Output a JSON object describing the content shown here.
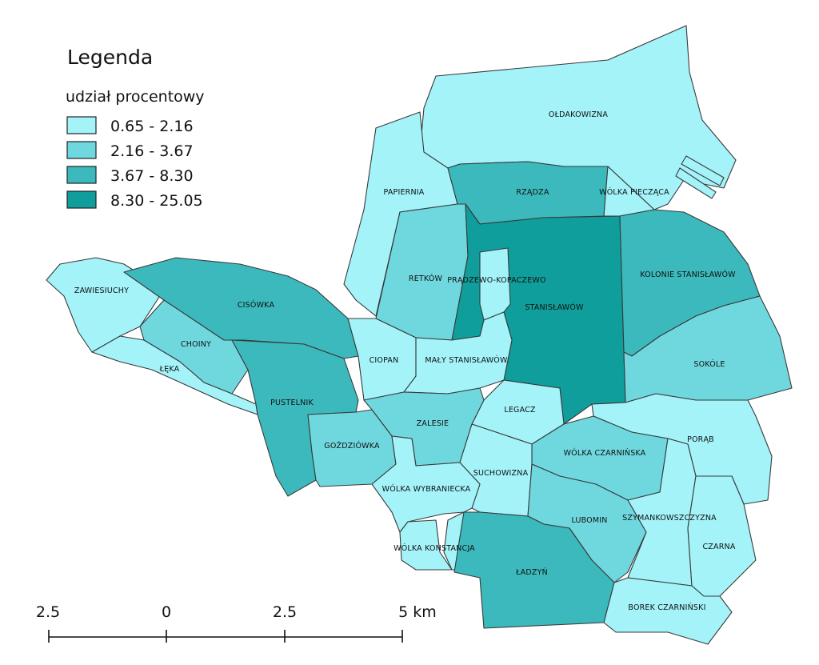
{
  "legend": {
    "title": "Legenda",
    "subtitle": "udział procentowy",
    "classes": [
      {
        "label": "0.65 - 2.16",
        "color": "#a3f3f9"
      },
      {
        "label": "2.16 - 3.67",
        "color": "#6fd8df"
      },
      {
        "label": "3.67 - 8.30",
        "color": "#3cb9bc"
      },
      {
        "label": "8.30 - 25.05",
        "color": "#0f9e9b"
      }
    ]
  },
  "regions": [
    {
      "name": "OŁDAKOWIZNA",
      "class": 0
    },
    {
      "name": "PAPIERNIA",
      "class": 0
    },
    {
      "name": "RZĄDZA",
      "class": 2
    },
    {
      "name": "WÓLKA PIECZĄCA",
      "class": 0
    },
    {
      "name": "RETKÓW",
      "class": 1
    },
    {
      "name": "PRĄDZEWO-KOPACZEWO",
      "class": 3
    },
    {
      "name": "STANISŁAWÓW",
      "class": 3
    },
    {
      "name": "KOLONIE STANISŁAWÓW",
      "class": 2
    },
    {
      "name": "ZAWIESIUCHY",
      "class": 0
    },
    {
      "name": "CISÓWKA",
      "class": 2
    },
    {
      "name": "CHOINY",
      "class": 1
    },
    {
      "name": "ŁĘKA",
      "class": 0
    },
    {
      "name": "CIOPAN",
      "class": 0
    },
    {
      "name": "MAŁY STANISŁAWÓW",
      "class": 0
    },
    {
      "name": "SOKÓLE",
      "class": 1
    },
    {
      "name": "PUSTELNIK",
      "class": 2
    },
    {
      "name": "LEGACZ",
      "class": 0
    },
    {
      "name": "ZALESIE",
      "class": 1
    },
    {
      "name": "GOŹDZIÓWKA",
      "class": 1
    },
    {
      "name": "PORĄB",
      "class": 0
    },
    {
      "name": "WÓLKA CZARNIŃSKA",
      "class": 1
    },
    {
      "name": "SUCHOWIZNA",
      "class": 0
    },
    {
      "name": "WÓLKA WYBRANIECKA",
      "class": 0
    },
    {
      "name": "LUBOMIN",
      "class": 1
    },
    {
      "name": "SZYMANKOWSZCZYZNA",
      "class": 0
    },
    {
      "name": "CZARNA",
      "class": 0
    },
    {
      "name": "WÓLKA KONSTANCJA",
      "class": 0
    },
    {
      "name": "ŁADZYŃ",
      "class": 2
    },
    {
      "name": "BOREK CZARNIŃSKI",
      "class": 0
    }
  ],
  "scale_bar": {
    "labels": [
      "2.5",
      "0",
      "2.5",
      "5 km"
    ]
  }
}
